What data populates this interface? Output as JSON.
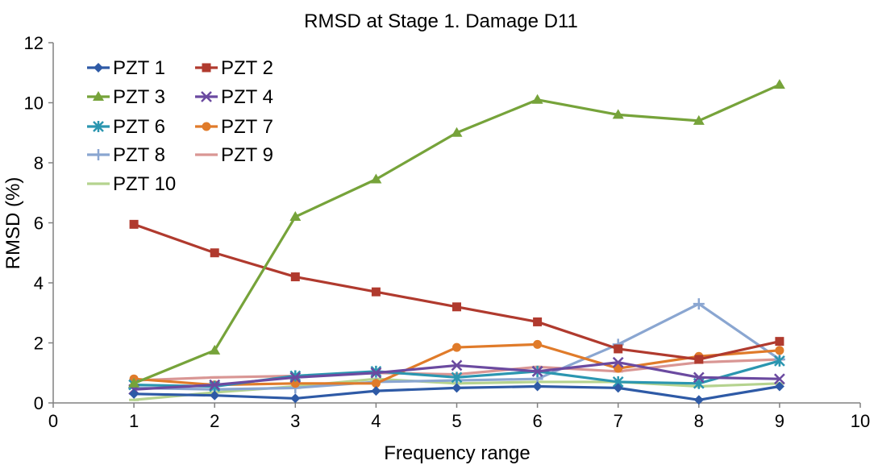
{
  "chart_data": {
    "type": "line",
    "title": "RMSD at Stage 1. Damage D11",
    "xlabel": "Frequency range",
    "ylabel": "RMSD (%)",
    "xlim": [
      0,
      10
    ],
    "ylim": [
      0,
      12
    ],
    "xticks": [
      "0",
      "1",
      "2",
      "3",
      "4",
      "5",
      "6",
      "7",
      "8",
      "9",
      "10"
    ],
    "yticks": [
      "0",
      "2",
      "4",
      "6",
      "8",
      "10",
      "12"
    ],
    "grid": false,
    "legend_position": "top-left",
    "x": [
      1,
      2,
      3,
      4,
      5,
      6,
      7,
      8,
      9
    ],
    "series": [
      {
        "name": "PZT 1",
        "color": "#2e5aa6",
        "marker": "diamond",
        "values": [
          0.3,
          0.25,
          0.15,
          0.4,
          0.5,
          0.55,
          0.5,
          0.1,
          0.55
        ]
      },
      {
        "name": "PZT 2",
        "color": "#b03a2e",
        "marker": "square",
        "values": [
          5.95,
          5.0,
          4.2,
          3.7,
          3.2,
          2.7,
          1.8,
          1.45,
          2.05
        ]
      },
      {
        "name": "PZT 3",
        "color": "#76a33a",
        "marker": "triangle",
        "values": [
          0.65,
          1.75,
          6.2,
          7.45,
          9.0,
          10.1,
          9.6,
          9.4,
          10.6
        ]
      },
      {
        "name": "PZT 4",
        "color": "#6b4aa0",
        "marker": "x",
        "values": [
          0.45,
          0.6,
          0.85,
          1.0,
          1.25,
          1.05,
          1.35,
          0.85,
          0.8
        ]
      },
      {
        "name": "PZT 6",
        "color": "#2b96b0",
        "marker": "star",
        "values": [
          0.6,
          0.55,
          0.9,
          1.05,
          0.85,
          1.05,
          0.7,
          0.65,
          1.4
        ]
      },
      {
        "name": "PZT 7",
        "color": "#e07b2a",
        "marker": "circle",
        "values": [
          0.8,
          0.6,
          0.65,
          0.65,
          1.85,
          1.95,
          1.15,
          1.55,
          1.75
        ]
      },
      {
        "name": "PZT 8",
        "color": "#8aa6d1",
        "marker": "plus",
        "values": [
          0.5,
          0.45,
          0.5,
          0.7,
          0.75,
          0.8,
          1.95,
          3.3,
          1.45
        ]
      },
      {
        "name": "PZT 9",
        "color": "#d99694",
        "marker": "dash",
        "values": [
          0.75,
          0.85,
          0.9,
          1.0,
          0.95,
          1.2,
          1.05,
          1.35,
          1.45
        ]
      },
      {
        "name": "PZT 10",
        "color": "#b5d38f",
        "marker": "dash",
        "values": [
          0.1,
          0.35,
          0.55,
          0.8,
          0.65,
          0.7,
          0.7,
          0.55,
          0.65
        ]
      }
    ]
  }
}
